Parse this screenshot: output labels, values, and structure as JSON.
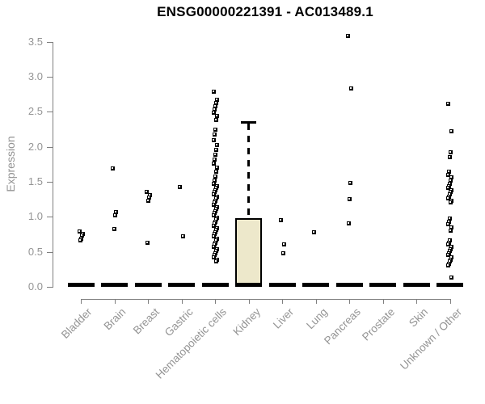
{
  "chart_data": {
    "type": "box",
    "title": "ENSG00000221391 - AC013489.1",
    "ylabel": "Expression",
    "ylim": [
      0,
      3.6
    ],
    "y_ticks": [
      "0.0",
      "0.5",
      "1.0",
      "1.5",
      "2.0",
      "2.5",
      "3.0",
      "3.5"
    ],
    "grid": false,
    "legend": "none",
    "categories": [
      "Bladder",
      "Brain",
      "Breast",
      "Gastric",
      "Hematopoietic cells",
      "Kidney",
      "Liver",
      "Lung",
      "Pancreas",
      "Prostate",
      "Skin",
      "Unknown / Other"
    ],
    "medians_at_zero": true,
    "boxes": [
      {
        "category": "Kidney",
        "q1": 0,
        "median": 0,
        "q3": 0.98,
        "whisker_high": 2.36
      }
    ],
    "points": {
      "Bladder": [
        0.79,
        0.76,
        0.73,
        0.69,
        0.66
      ],
      "Brain": [
        1.69,
        1.07,
        1.02,
        0.82
      ],
      "Breast": [
        1.35,
        1.31,
        1.27,
        1.23,
        0.63
      ],
      "Gastric": [
        1.42,
        0.72
      ],
      "Hematopoietic cells": [
        2.79,
        2.67,
        2.62,
        2.58,
        2.53,
        2.49,
        2.44,
        2.38,
        2.24,
        2.17,
        2.1,
        2.03,
        1.96,
        1.89,
        1.82,
        1.76,
        1.7,
        1.64,
        1.58,
        1.52,
        1.47,
        1.44,
        1.41,
        1.38,
        1.35,
        1.32,
        1.29,
        1.26,
        1.23,
        1.2,
        1.17,
        1.14,
        1.11,
        1.08,
        1.05,
        1.02,
        0.99,
        0.96,
        0.93,
        0.9,
        0.87,
        0.84,
        0.81,
        0.78,
        0.75,
        0.72,
        0.69,
        0.66,
        0.63,
        0.6,
        0.57,
        0.54,
        0.51,
        0.48,
        0.45,
        0.42,
        0.39,
        0.36
      ],
      "Kidney": [],
      "Liver": [
        0.95,
        0.6,
        0.48
      ],
      "Lung": [
        0.78
      ],
      "Pancreas": [
        3.58,
        2.83,
        1.48,
        1.25,
        0.9
      ],
      "Prostate": [],
      "Skin": [],
      "Unknown / Other": [
        2.61,
        2.22,
        1.92,
        1.85,
        1.64,
        1.6,
        1.56,
        1.52,
        1.47,
        1.44,
        1.41,
        1.38,
        1.35,
        1.32,
        1.29,
        1.26,
        1.23,
        1.2,
        0.97,
        0.93,
        0.89,
        0.85,
        0.8,
        0.66,
        0.63,
        0.6,
        0.57,
        0.54,
        0.51,
        0.48,
        0.45,
        0.42,
        0.39,
        0.36,
        0.33,
        0.3,
        0.13
      ]
    },
    "colors": {
      "box_fill": "#EDE8CB",
      "marker": "#000000",
      "axis_text": "#949494",
      "axis_line": "#7f7f7f",
      "title_text": "#000000"
    }
  }
}
